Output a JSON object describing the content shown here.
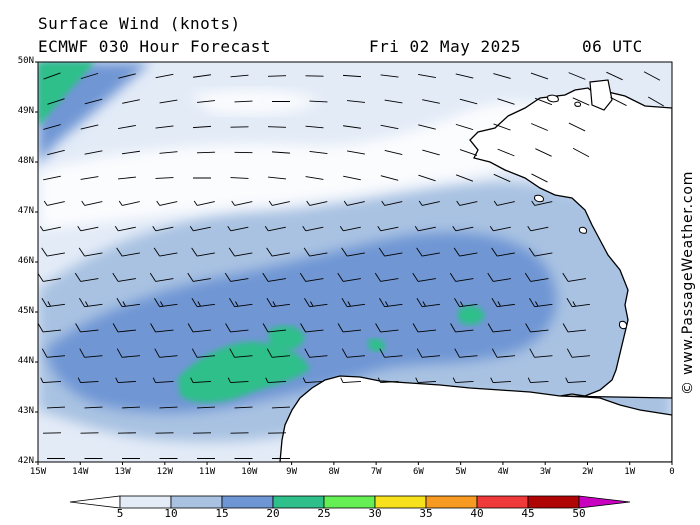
{
  "header": {
    "title": "Surface Wind (knots)",
    "model": "ECMWF 030 Hour Forecast",
    "date": "Fri 02 May 2025",
    "time": "06 UTC"
  },
  "credit": "© www.PassageWeather.com",
  "lat_labels": [
    "50N",
    "49N",
    "48N",
    "47N",
    "46N",
    "45N",
    "44N",
    "43N",
    "42N"
  ],
  "lon_labels": [
    "15W",
    "14W",
    "13W",
    "12W",
    "11W",
    "10W",
    "9W",
    "8W",
    "7W",
    "6W",
    "5W",
    "4W",
    "3W",
    "2W",
    "1W",
    "0"
  ],
  "colorbar": {
    "labels": [
      "5",
      "10",
      "15",
      "20",
      "25",
      "30",
      "35",
      "40",
      "45",
      "50"
    ],
    "colors": [
      "#e3ebf7",
      "#a9c2e2",
      "#6f96d4",
      "#2fbf8a",
      "#66ee55",
      "#f7e11c",
      "#f79a22",
      "#ee3a3a",
      "#b00505",
      "#c800c0"
    ]
  },
  "map": {
    "lat_range": [
      42,
      50
    ],
    "lon_range": [
      -15,
      0
    ],
    "land_color": "#ffffff",
    "wind_band_center_lat": 45.3
  }
}
